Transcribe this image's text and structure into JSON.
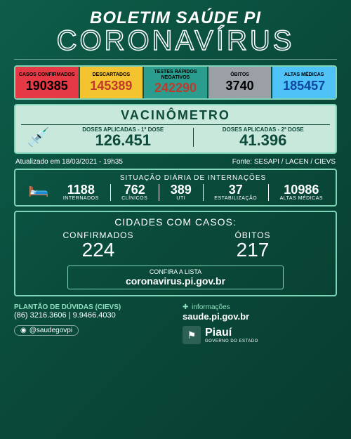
{
  "header": {
    "title1": "BOLETIM SAÚDE PI",
    "title2": "CORONAVÍRUS"
  },
  "stats": [
    {
      "label": "CASOS CONFIRMADOS",
      "value": "190385",
      "bg": "#e63946",
      "label_color": "#000000",
      "value_color": "#000000"
    },
    {
      "label": "DESCARTADOS",
      "value": "145389",
      "bg": "#f4c430",
      "label_color": "#000000",
      "value_color": "#c0392b"
    },
    {
      "label": "TESTES RÁPIDOS NEGATIVOS",
      "value": "242290",
      "bg": "#2a9d8f",
      "label_color": "#000000",
      "value_color": "#c0392b"
    },
    {
      "label": "ÓBITOS",
      "value": "3740",
      "bg": "#9aa0a6",
      "label_color": "#000000",
      "value_color": "#000000"
    },
    {
      "label": "ALTAS MÉDICAS",
      "value": "185457",
      "bg": "#4fc3f7",
      "label_color": "#000000",
      "value_color": "#0d47a1"
    }
  ],
  "vaccine": {
    "title": "VACINÔMETRO",
    "panel_bg": "#c8e8dc",
    "text_color": "#0d4a3a",
    "dose1_label": "DOSES APLICADAS - 1ª DOSE",
    "dose1_value": "126.451",
    "dose2_label": "DOSES APLICADAS - 2ª DOSE",
    "dose2_value": "41.396"
  },
  "update": {
    "text": "Atualizado em 18/03/2021 - 19h35",
    "source": "Fonte:  SESAPI / LACEN / CIEVS"
  },
  "hospital": {
    "title": "SITUAÇÃO DIÁRIA DE INTERNAÇÕES",
    "items": [
      {
        "value": "1188",
        "label": "INTERNADOS"
      },
      {
        "value": "762",
        "label": "CLÍNICOS"
      },
      {
        "value": "389",
        "label": "UTI"
      },
      {
        "value": "37",
        "label": "ESTABILIZAÇÃO"
      },
      {
        "value": "10986",
        "label": "ALTAS MÉDICAS"
      }
    ]
  },
  "cities": {
    "title": "CIDADES COM CASOS:",
    "confirmed_label": "CONFIRMADOS",
    "confirmed_value": "224",
    "deaths_label": "ÓBITOS",
    "deaths_value": "217",
    "confira_label": "CONFIRA A LISTA",
    "confira_url": "coronavirus.pi.gov.br"
  },
  "footer": {
    "plantao_title": "PLANTÃO DE DÚVIDAS (CIEVS)",
    "phones": "(86) 3216.3606 | 9.9466.4030",
    "social": "@saudegovpi",
    "info_label": "informações",
    "info_url": "saude.pi.gov.br",
    "state": "Piauí",
    "state_sub": "GOVERNO DO ESTADO"
  },
  "colors": {
    "border": "#7fd4b8",
    "accent": "#8fe0c0"
  }
}
